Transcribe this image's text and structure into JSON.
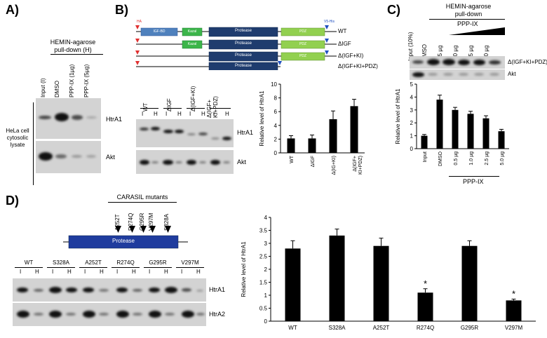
{
  "panels": {
    "A": {
      "label": "A)",
      "header": "HEMIN-agarose\npull-down (H)",
      "lanes": [
        "Input (I)",
        "DMSO",
        "PPP-IX (1µg)",
        "PPP-IX (5µg)"
      ],
      "side_label": "HeLa cell\ncytosolic\nlysate",
      "blots": [
        "HtrA1",
        "Akt"
      ]
    },
    "B": {
      "label": "B)",
      "domains": [
        "IGF-BD",
        "Kazal",
        "Protease",
        "PDZ"
      ],
      "tags": [
        "HA",
        "V5-His"
      ],
      "constructs": [
        "WT",
        "ΔIGF",
        "Δ(IGF+KI)",
        "Δ(IGF+KI+PDZ)"
      ],
      "lane_groups": [
        "WT",
        "ΔIGF",
        "Δ(IGF+KI)",
        "Δ(IGF+\nKI+PDZ)"
      ],
      "lane_sub": [
        "I",
        "H"
      ],
      "blots": [
        "HtrA1",
        "Akt"
      ]
    },
    "C": {
      "label": "C)",
      "header": "HEMIN-agarose\npull-down",
      "treatment": "PPP-IX",
      "lanes": [
        "Input (10%)",
        "DMSO",
        "0.5 µg",
        "1.0 µg",
        "2.5 µg",
        "5.0 µg"
      ],
      "blots": [
        "Δ(IGF+KI+PDZ)",
        "Akt"
      ],
      "bracket_label": "PPP-IX"
    },
    "D": {
      "label": "D)",
      "mutants_title": "CARASIL mutants",
      "mutants": [
        "A252T",
        "R274Q",
        "G295R",
        "V297M",
        "S328A"
      ],
      "domain": "Protease",
      "lane_groups": [
        "WT",
        "S328A",
        "A252T",
        "R274Q",
        "G295R",
        "V297M"
      ],
      "lane_sub": [
        "I",
        "H"
      ],
      "blots": [
        "HtrA1",
        "HtrA2"
      ]
    }
  },
  "chart_data": [
    {
      "type": "bar",
      "panel": "B",
      "categories": [
        "WT",
        "ΔIGF",
        "Δ(IG+KI)",
        "Δ(IGF+\nKI+PDZ)"
      ],
      "values": [
        2.1,
        2.1,
        4.9,
        6.8
      ],
      "errors": [
        0.4,
        0.5,
        1.2,
        1.0
      ],
      "ylabel": "Relative level of HtrA1",
      "ylim": [
        0,
        10
      ],
      "yticks": [
        0,
        2,
        4,
        6,
        8,
        10
      ]
    },
    {
      "type": "bar",
      "panel": "C",
      "categories": [
        "Input",
        "DMSO",
        "0.5 µg",
        "1.0 µg",
        "2.5 µg",
        "5.0 µg"
      ],
      "values": [
        1.0,
        3.8,
        3.0,
        2.7,
        2.35,
        1.35
      ],
      "errors": [
        0.1,
        0.35,
        0.2,
        0.2,
        0.2,
        0.15
      ],
      "ylabel": "Relative level of HtrA1",
      "xgroup_label": "PPP-IX",
      "ylim": [
        0,
        5
      ],
      "yticks": [
        0,
        1,
        2,
        3,
        4,
        5
      ]
    },
    {
      "type": "bar",
      "panel": "D",
      "categories": [
        "WT",
        "S328A",
        "A252T",
        "R274Q",
        "G295R",
        "V297M"
      ],
      "values": [
        2.8,
        3.3,
        2.9,
        1.1,
        2.9,
        0.8
      ],
      "errors": [
        0.3,
        0.25,
        0.3,
        0.15,
        0.2,
        0.05
      ],
      "significant": [
        false,
        false,
        false,
        true,
        false,
        true
      ],
      "marker": "*",
      "ylabel": "Relative level of HtrA1",
      "ylim": [
        0,
        4
      ],
      "yticks": [
        0,
        0.5,
        1,
        1.5,
        2,
        2.5,
        3,
        3.5,
        4
      ]
    }
  ]
}
